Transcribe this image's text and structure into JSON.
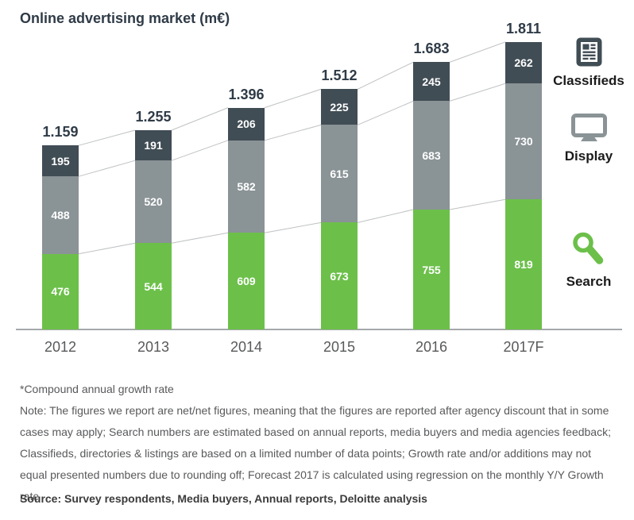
{
  "title": "Online advertising market (m€)",
  "chart_data": {
    "type": "bar",
    "stacked": true,
    "title": "Online advertising market (m€)",
    "unit": "m€",
    "categories": [
      "2012",
      "2013",
      "2014",
      "2015",
      "2016",
      "2017F"
    ],
    "series": [
      {
        "name": "Search",
        "color": "#6cc04a",
        "values": [
          476,
          544,
          609,
          673,
          755,
          819
        ]
      },
      {
        "name": "Display",
        "color": "#8a9396",
        "values": [
          488,
          520,
          582,
          615,
          683,
          730
        ]
      },
      {
        "name": "Classifieds",
        "color": "#414d55",
        "values": [
          195,
          191,
          206,
          225,
          245,
          262
        ]
      }
    ],
    "totals": [
      1159,
      1255,
      1396,
      1512,
      1683,
      1811
    ],
    "totals_formatted": [
      "1.159",
      "1.255",
      "1.396",
      "1.512",
      "1.683",
      "1.811"
    ],
    "value_labels": "inside-segments-white",
    "grid": false,
    "y_axis_shown": false,
    "legend_position": "right",
    "connector_lines": "between-stack-boundaries"
  },
  "legend": {
    "items": [
      {
        "label": "Classifieds",
        "icon": "newspaper-icon",
        "color": "#414d55"
      },
      {
        "label": "Display",
        "icon": "monitor-icon",
        "color": "#8a9396"
      },
      {
        "label": "Search",
        "icon": "magnifier-icon",
        "color": "#6cc04a"
      }
    ]
  },
  "footnotes": {
    "cagr": "*Compound annual growth rate",
    "note": "Note: The figures we report are net/net figures, meaning that the figures are reported after agency discount that in some cases may apply; Search numbers are estimated based on annual reports, media buyers and media agencies feedback; Classifieds, directories & listings are based on a limited number of data points; Growth rate and/or additions may not equal presented numbers due to rounding off; Forecast 2017 is calculated using regression on the monthly Y/Y Growth rate"
  },
  "source": "Source: Survey respondents, Media buyers, Annual reports, Deloitte analysis",
  "colors": {
    "search_green": "#6cc04a",
    "display_gray": "#8a9396",
    "classifieds_dark": "#414d55",
    "axis_gray": "#a6a8ab",
    "connector_gray": "#bfc1c3",
    "title_dark": "#2f3b47",
    "note_gray": "#58595b"
  }
}
